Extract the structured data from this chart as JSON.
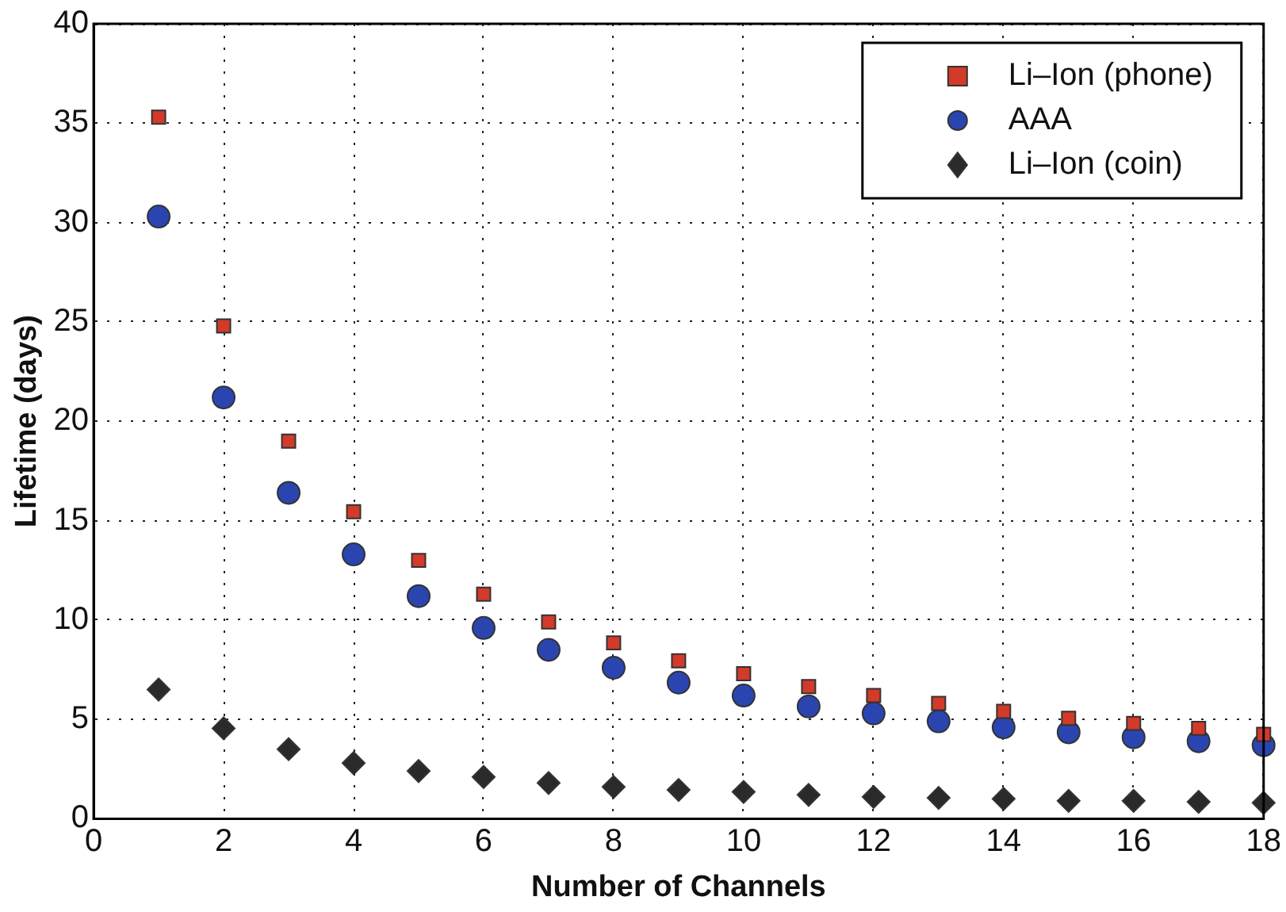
{
  "chart_data": {
    "type": "scatter",
    "xlabel": "Number of Channels",
    "ylabel": "Lifetime (days)",
    "x": [
      1,
      2,
      3,
      4,
      5,
      6,
      7,
      8,
      9,
      10,
      11,
      12,
      13,
      14,
      15,
      16,
      17,
      18
    ],
    "series": [
      {
        "name": "Li–Ion (phone)",
        "color": "#d23a2a",
        "marker": "square",
        "values": [
          35.3,
          24.8,
          19.0,
          15.45,
          13.0,
          11.3,
          9.9,
          8.85,
          7.95,
          7.3,
          6.65,
          6.2,
          5.8,
          5.4,
          5.05,
          4.8,
          4.55,
          4.25
        ]
      },
      {
        "name": "AAA",
        "color": "#2b45b0",
        "marker": "circle",
        "values": [
          30.3,
          21.2,
          16.4,
          13.3,
          11.2,
          9.6,
          8.5,
          7.6,
          6.85,
          6.2,
          5.65,
          5.3,
          4.9,
          4.6,
          4.35,
          4.1,
          3.9,
          3.7
        ]
      },
      {
        "name": "Li–Ion (coin)",
        "color": "#2a2a2a",
        "marker": "diamond",
        "values": [
          6.5,
          4.55,
          3.5,
          2.8,
          2.4,
          2.1,
          1.8,
          1.6,
          1.45,
          1.35,
          1.2,
          1.1,
          1.05,
          1.0,
          0.9,
          0.9,
          0.85,
          0.8
        ]
      }
    ],
    "xlim": [
      0,
      18
    ],
    "xticks": [
      0,
      2,
      4,
      6,
      8,
      10,
      12,
      14,
      16,
      18
    ],
    "ylim": [
      0,
      40
    ],
    "yticks": [
      0,
      5,
      10,
      15,
      20,
      25,
      30,
      35,
      40
    ],
    "grid": true,
    "legend": "top right"
  }
}
